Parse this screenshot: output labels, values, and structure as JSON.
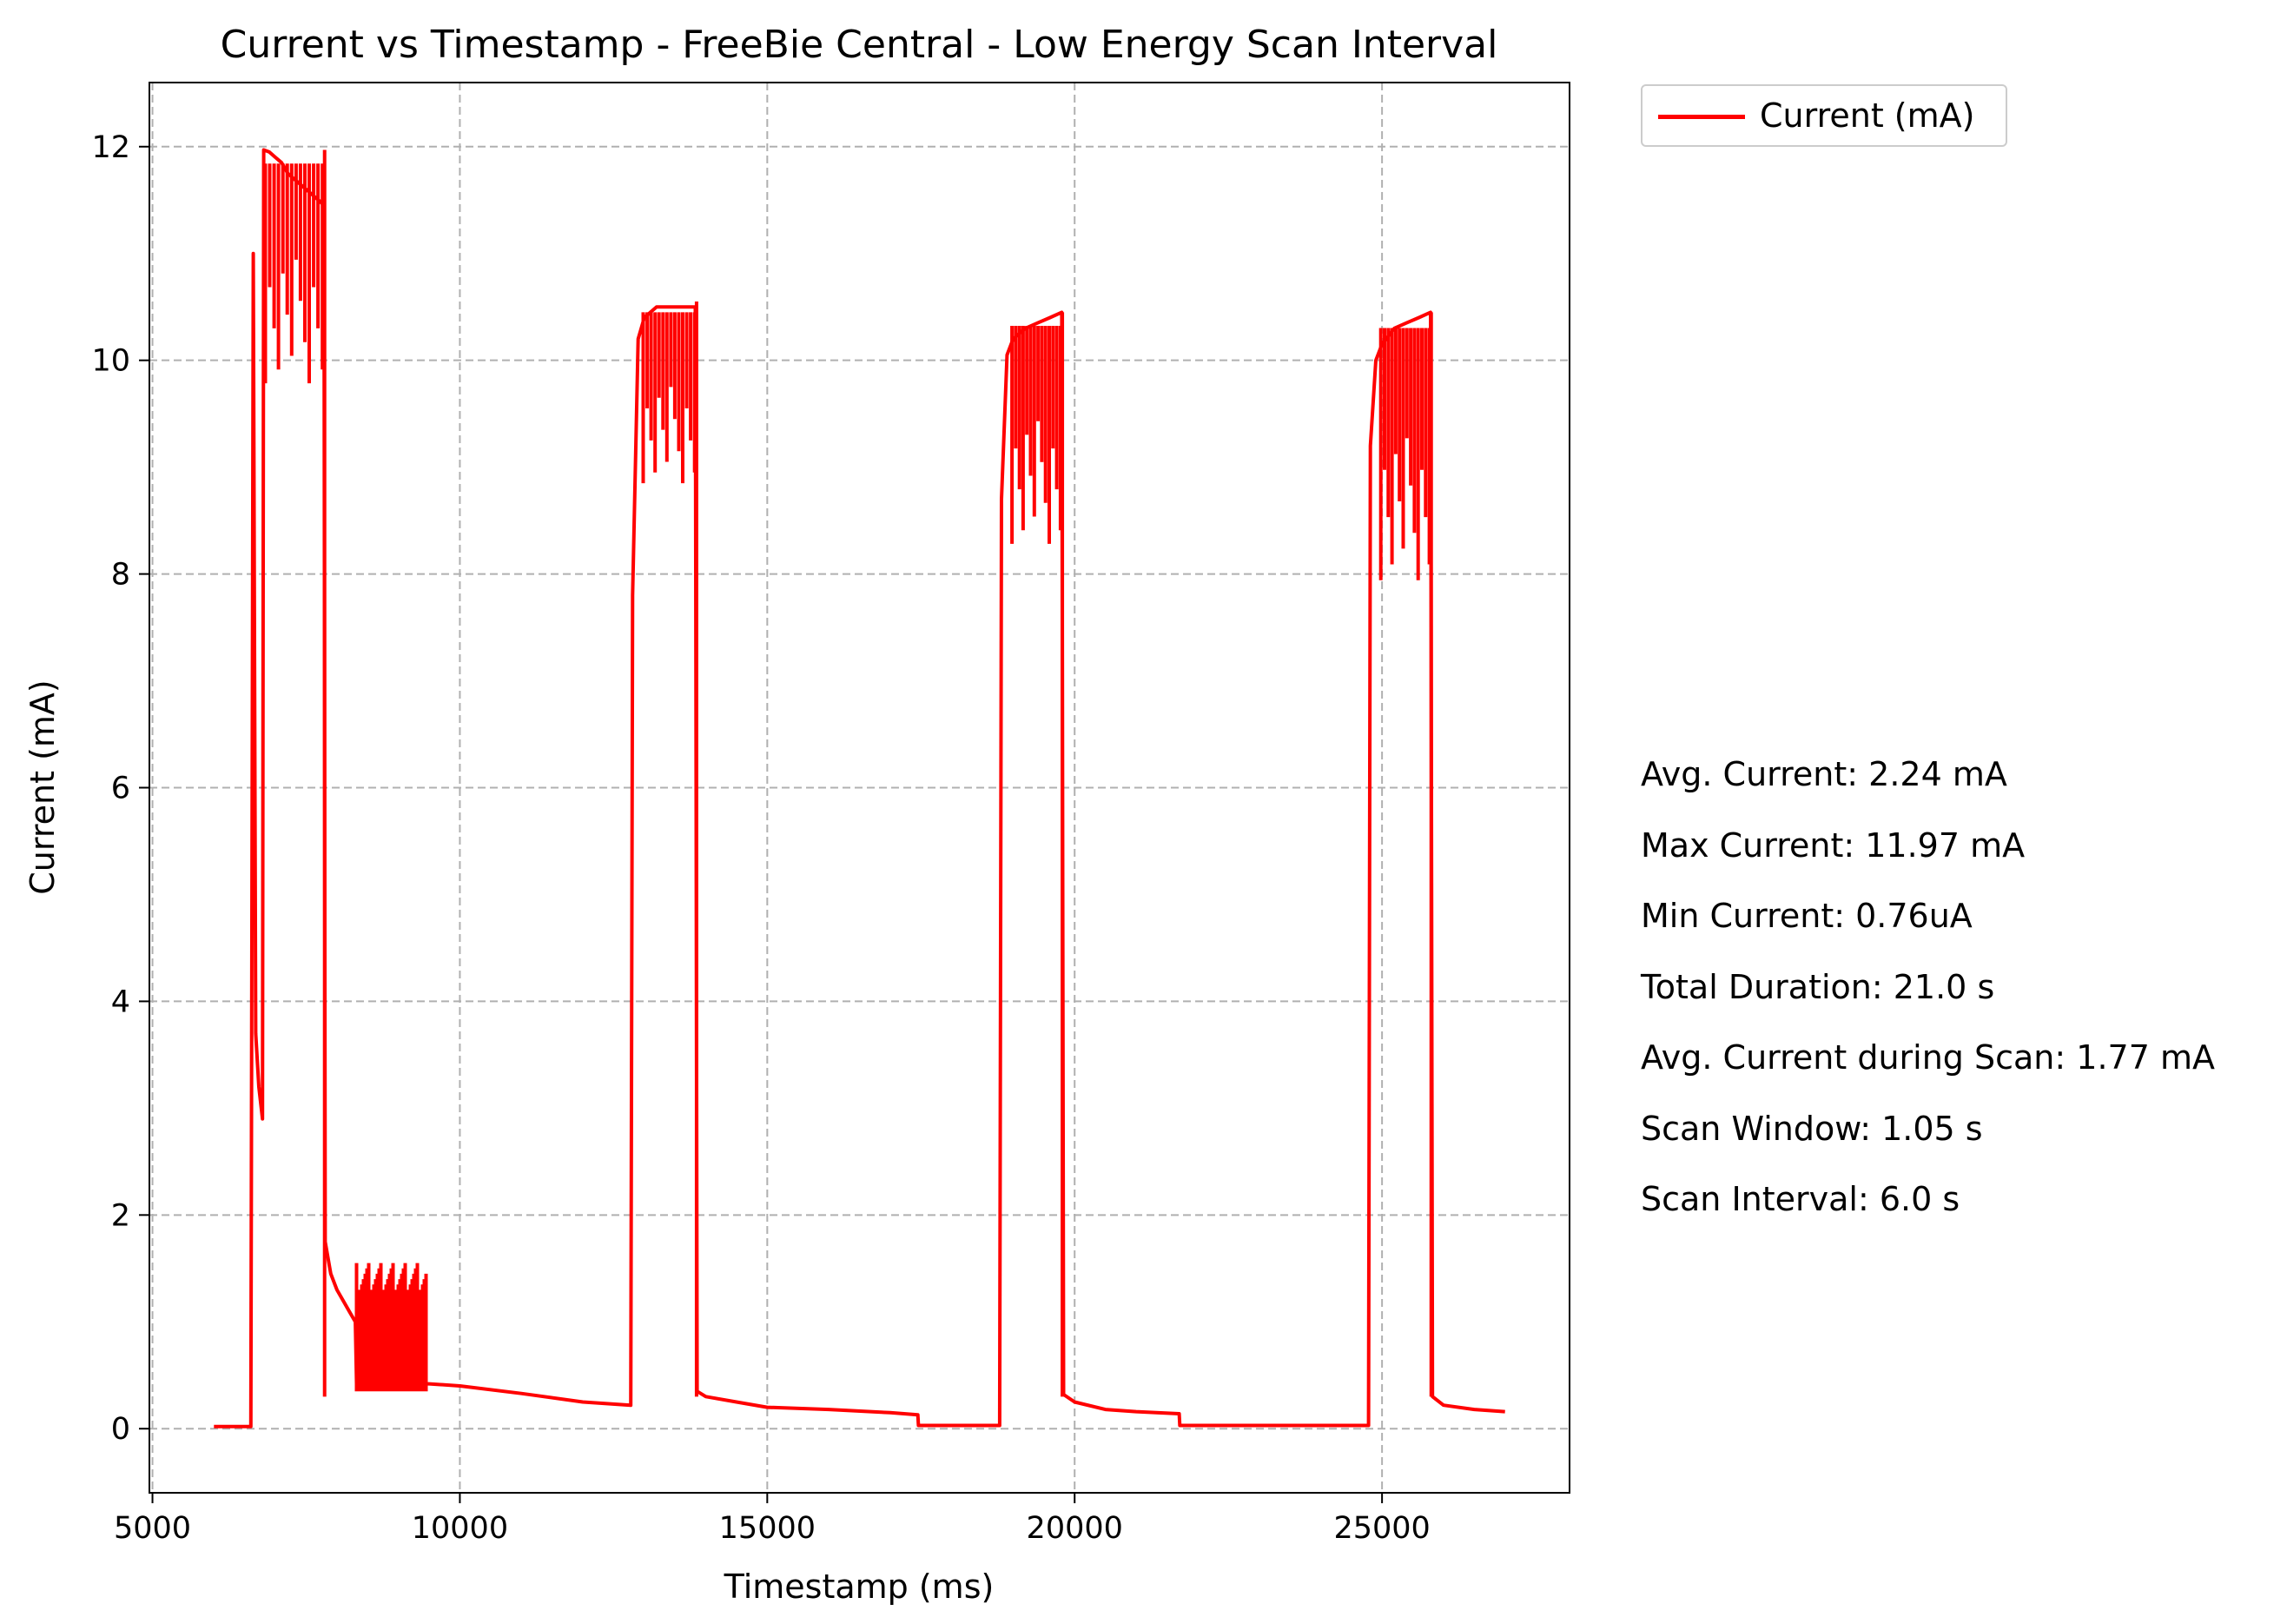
{
  "chart_data": {
    "type": "line",
    "title": "Current vs Timestamp - FreeBie Central - Low Energy Scan Interval",
    "xlabel": "Timestamp (ms)",
    "ylabel": "Current (mA)",
    "xlim": [
      4950,
      28050
    ],
    "ylim": [
      -0.6,
      12.6
    ],
    "xticks": [
      5000,
      10000,
      15000,
      20000,
      25000
    ],
    "yticks": [
      0,
      2,
      4,
      6,
      8,
      10,
      12
    ],
    "grid": true,
    "legend_position": "outside-top-right",
    "series": [
      {
        "name": "Current (mA)",
        "color": "#ff0000",
        "bursts": [
          {
            "start": 6600,
            "peak_start": 6800,
            "end": 7800,
            "max": 11.97,
            "min": 9.4
          },
          {
            "start": 12800,
            "peak_start": 12950,
            "end": 13850,
            "max": 10.55,
            "min": 8.55
          },
          {
            "start": 18800,
            "peak_start": 18950,
            "end": 19800,
            "max": 10.45,
            "min": 7.9
          },
          {
            "start": 24800,
            "peak_start": 24950,
            "end": 25800,
            "max": 10.45,
            "min": 7.5
          }
        ],
        "points": [
          [
            6000,
            0.02
          ],
          [
            6550,
            0.02
          ],
          [
            6600,
            0.02
          ],
          [
            6640,
            11.0
          ],
          [
            6680,
            3.7
          ],
          [
            6730,
            3.2
          ],
          [
            6790,
            2.9
          ],
          [
            6810,
            11.97
          ],
          [
            6900,
            11.95
          ],
          [
            7000,
            11.9
          ],
          [
            7100,
            11.85
          ],
          [
            7200,
            11.75
          ],
          [
            7300,
            11.7
          ],
          [
            7400,
            11.65
          ],
          [
            7500,
            11.6
          ],
          [
            7600,
            11.55
          ],
          [
            7700,
            11.5
          ],
          [
            7790,
            11.45
          ],
          [
            7810,
            1.75
          ],
          [
            7900,
            1.45
          ],
          [
            8000,
            1.3
          ],
          [
            8100,
            1.2
          ],
          [
            8200,
            1.1
          ],
          [
            8300,
            1.0
          ],
          [
            8320,
            0.42
          ],
          [
            9500,
            0.42
          ],
          [
            10000,
            0.4
          ],
          [
            11000,
            0.33
          ],
          [
            12000,
            0.25
          ],
          [
            12780,
            0.22
          ],
          [
            12810,
            7.8
          ],
          [
            12900,
            10.2
          ],
          [
            13000,
            10.4
          ],
          [
            13200,
            10.5
          ],
          [
            13400,
            10.5
          ],
          [
            13600,
            10.5
          ],
          [
            13830,
            10.5
          ],
          [
            13860,
            0.35
          ],
          [
            14000,
            0.3
          ],
          [
            14500,
            0.25
          ],
          [
            15000,
            0.2
          ],
          [
            16000,
            0.18
          ],
          [
            17000,
            0.15
          ],
          [
            17450,
            0.13
          ],
          [
            17460,
            0.03
          ],
          [
            18780,
            0.03
          ],
          [
            18810,
            8.7
          ],
          [
            18900,
            10.05
          ],
          [
            19000,
            10.2
          ],
          [
            19200,
            10.3
          ],
          [
            19400,
            10.35
          ],
          [
            19600,
            10.4
          ],
          [
            19790,
            10.45
          ],
          [
            19820,
            0.32
          ],
          [
            20000,
            0.25
          ],
          [
            20500,
            0.18
          ],
          [
            21000,
            0.16
          ],
          [
            21700,
            0.14
          ],
          [
            21710,
            0.03
          ],
          [
            24780,
            0.03
          ],
          [
            24810,
            9.2
          ],
          [
            24900,
            10.0
          ],
          [
            25000,
            10.15
          ],
          [
            25200,
            10.3
          ],
          [
            25400,
            10.35
          ],
          [
            25600,
            10.4
          ],
          [
            25790,
            10.45
          ],
          [
            25820,
            0.3
          ],
          [
            26000,
            0.22
          ],
          [
            26500,
            0.18
          ],
          [
            27000,
            0.16
          ]
        ],
        "noise_bands": [
          {
            "start": 8320,
            "end": 9450,
            "low": 0.35,
            "high": 1.55
          }
        ]
      }
    ]
  },
  "stats": [
    "Avg. Current: 2.24 mA",
    "Max Current: 11.97 mA",
    "Min Current: 0.76uA",
    "Total Duration: 21.0 s",
    "Avg. Current during Scan: 1.77 mA",
    "Scan Window: 1.05 s",
    "Scan Interval: 6.0 s"
  ]
}
